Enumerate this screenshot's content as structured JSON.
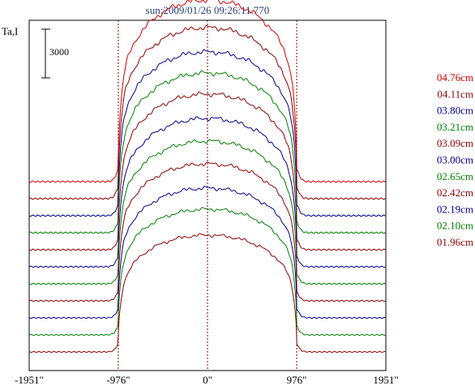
{
  "title": "sun:2009/01/26 09:26:11.770",
  "ylabel": "Ta,I",
  "scale_bar_label": "3000",
  "x_tick_labels": [
    "-1951\"",
    "-976\"",
    "0\"",
    "976\"",
    "1951\""
  ],
  "chart_data": {
    "type": "line",
    "title": "sun:2009/01/26 09:26:11.770",
    "xlabel": "",
    "ylabel": "Ta,I",
    "x_ticks": [
      -1951,
      -976,
      0,
      976,
      1951
    ],
    "xlim": [
      -1951,
      1951
    ],
    "reference_lines_x": [
      -976,
      0,
      976
    ],
    "scale_bar": 3000,
    "grid": false,
    "legend": "right",
    "series": [
      {
        "name": "04.76cm",
        "color": "#d00000",
        "base": 10500,
        "peak": 21700
      },
      {
        "name": "04.11cm",
        "color": "#900000",
        "base": 9450,
        "peak": 20000
      },
      {
        "name": "03.80cm",
        "color": "#000090",
        "base": 8400,
        "peak": 18500
      },
      {
        "name": "03.21cm",
        "color": "#008000",
        "base": 7350,
        "peak": 17200
      },
      {
        "name": "03.09cm",
        "color": "#900000",
        "base": 6300,
        "peak": 15900
      },
      {
        "name": "03.00cm",
        "color": "#000090",
        "base": 5250,
        "peak": 14400
      },
      {
        "name": "02.65cm",
        "color": "#008000",
        "base": 4200,
        "peak": 13000
      },
      {
        "name": "02.42cm",
        "color": "#900000",
        "base": 3150,
        "peak": 11600
      },
      {
        "name": "02.19cm",
        "color": "#000090",
        "base": 2100,
        "peak": 10100
      },
      {
        "name": "02.10cm",
        "color": "#008000",
        "base": 1050,
        "peak": 8800
      },
      {
        "name": "01.96cm",
        "color": "#900000",
        "base": 0,
        "peak": 7200
      }
    ]
  }
}
